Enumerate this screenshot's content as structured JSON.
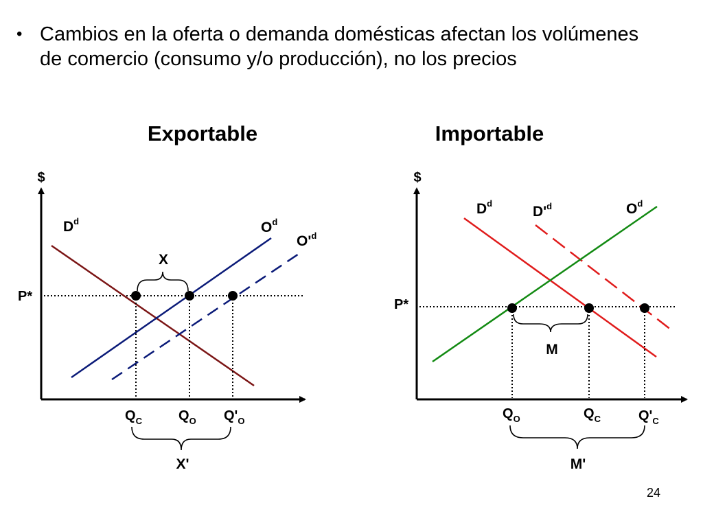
{
  "bullet": {
    "marker": "•",
    "text": "Cambios en la oferta o demanda domésticas afectan los volúmenes de comercio (consumo y/o producción), no los precios"
  },
  "exportable": {
    "title": "Exportable",
    "y_axis": "$",
    "price": "P*",
    "demand": {
      "main": "D",
      "sup": "d"
    },
    "supply": {
      "main": "O",
      "sup": "d"
    },
    "supply_shifted": {
      "main": "O'",
      "sup": "d"
    },
    "brace_top": "X",
    "q1": {
      "main": "Q",
      "sub": "C"
    },
    "q2": {
      "main": "Q",
      "sub": "O"
    },
    "q3": {
      "main": "Q'",
      "sub": "O"
    },
    "brace_bottom": "X'",
    "colors": {
      "demand": "#7b1515",
      "supply": "#0a1a78"
    }
  },
  "importable": {
    "title": "Importable",
    "y_axis": "$",
    "price": "P*",
    "demand": {
      "main": "D",
      "sup": "d"
    },
    "demand_shifted": {
      "main": "D'",
      "sup": "d"
    },
    "supply": {
      "main": "O",
      "sup": "d"
    },
    "brace_top": "M",
    "q1": {
      "main": "Q",
      "sub": "O"
    },
    "q2": {
      "main": "Q",
      "sub": "C"
    },
    "q3": {
      "main": "Q'",
      "sub": "C"
    },
    "brace_bottom": "M'",
    "colors": {
      "demand": "#e01b1b",
      "supply": "#128a12"
    }
  },
  "page_number": "24"
}
